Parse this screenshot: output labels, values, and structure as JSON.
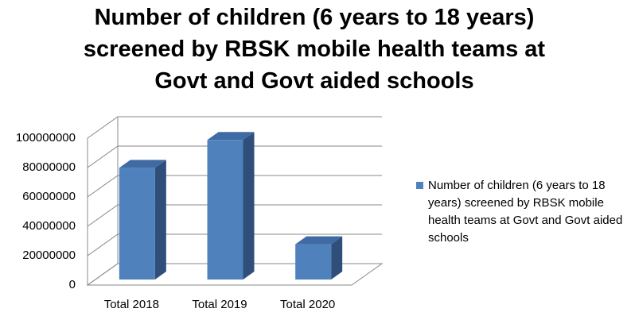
{
  "chart_data": {
    "type": "bar",
    "title": "Number of children (6 years to 18 years) screened by RBSK mobile health teams at Govt and Govt aided schools",
    "categories": [
      "Total 2018",
      "Total 2019",
      "Total 2020"
    ],
    "series": [
      {
        "name": "Number of children (6 years to 18 years) screened by RBSK mobile health teams at Govt and Govt aided schools",
        "color": "#4f81bd",
        "values": [
          76000000,
          95000000,
          24000000
        ]
      }
    ],
    "ylim": [
      0,
      100000000
    ],
    "yticks": [
      0,
      20000000,
      40000000,
      60000000,
      80000000,
      100000000
    ],
    "grid": true,
    "legend": "right"
  }
}
